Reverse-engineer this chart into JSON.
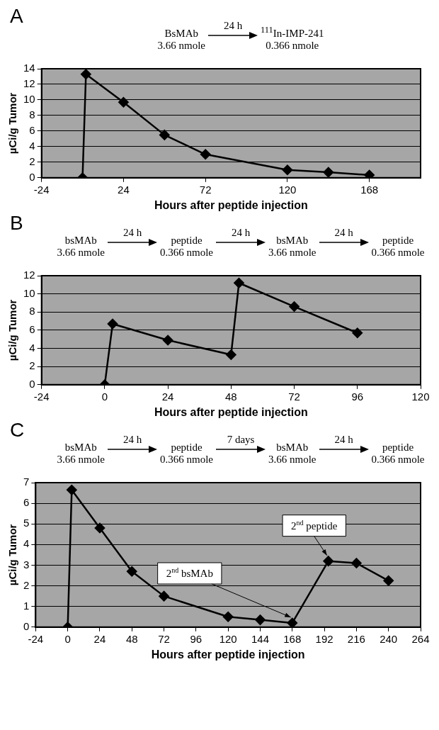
{
  "chart_data": [
    {
      "type": "line",
      "title": "A",
      "annotations": [
        "BsMAb",
        "3.66 nmole",
        "24 h",
        "$^{111}$In-IMP-241",
        "0.366 nmole"
      ],
      "xlabel": "Hours after peptide injection",
      "ylabel": "µCi/g Tumor",
      "marker": "diamond",
      "grid": "y",
      "xlim": [
        -24,
        198
      ],
      "xticks": [
        -24,
        24,
        72,
        120,
        168
      ],
      "ylim": [
        0,
        14
      ],
      "yticks": [
        0,
        2,
        4,
        6,
        8,
        10,
        12,
        14
      ],
      "series": [
        {
          "color": "#000000",
          "x": [
            0,
            2,
            24,
            48,
            72,
            120,
            144,
            168
          ],
          "values": [
            0,
            13.3,
            9.7,
            5.5,
            3.0,
            1.0,
            0.7,
            0.35
          ]
        }
      ]
    },
    {
      "type": "line",
      "title": "B",
      "annotations": [
        "bsMAb",
        "3.66 nmole",
        "24 h",
        "peptide",
        "0.366 nmole",
        "24 h",
        "bsMAb",
        "3.66 nmole",
        "24 h",
        "peptide",
        "0.366 nmole"
      ],
      "xlabel": "Hours after peptide injection",
      "ylabel": "µCi/g Tumor",
      "marker": "diamond",
      "grid": "y",
      "xlim": [
        -24,
        120
      ],
      "xticks": [
        -24,
        0,
        24,
        48,
        72,
        96,
        120
      ],
      "ylim": [
        0,
        12
      ],
      "yticks": [
        0,
        2,
        4,
        6,
        8,
        10,
        12
      ],
      "series": [
        {
          "color": "#000000",
          "x": [
            0,
            3,
            24,
            48,
            51,
            72,
            96
          ],
          "values": [
            0,
            6.7,
            4.9,
            3.3,
            11.2,
            8.6,
            5.7
          ]
        }
      ]
    },
    {
      "type": "line",
      "title": "C",
      "annotations": [
        "bsMAb",
        "3.66 nmole",
        "24 h",
        "peptide",
        "0.366 nmole",
        "7 days",
        "bsMAb",
        "3.66 nmole",
        "24 h",
        "peptide",
        "0.366 nmole",
        {
          "text": "2$^{nd}$ bsMAb",
          "x": 168,
          "y": 0.2
        },
        {
          "text": "2$^{nd}$ peptide",
          "x": 195,
          "y": 3.2
        }
      ],
      "xlabel": "Hours after peptide injection",
      "ylabel": "µCi/g Tumor",
      "marker": "diamond",
      "grid": "y",
      "xlim": [
        -24,
        264
      ],
      "xticks": [
        -24,
        0,
        24,
        48,
        72,
        96,
        120,
        144,
        168,
        192,
        216,
        240,
        264
      ],
      "ylim": [
        0,
        7
      ],
      "yticks": [
        0,
        1,
        2,
        3,
        4,
        5,
        6,
        7
      ],
      "series": [
        {
          "color": "#000000",
          "x": [
            0,
            3,
            24,
            48,
            72,
            120,
            144,
            168,
            195,
            216,
            240
          ],
          "values": [
            0,
            6.65,
            4.8,
            2.7,
            1.5,
            0.5,
            0.35,
            0.2,
            3.2,
            3.1,
            2.25
          ]
        }
      ]
    }
  ]
}
